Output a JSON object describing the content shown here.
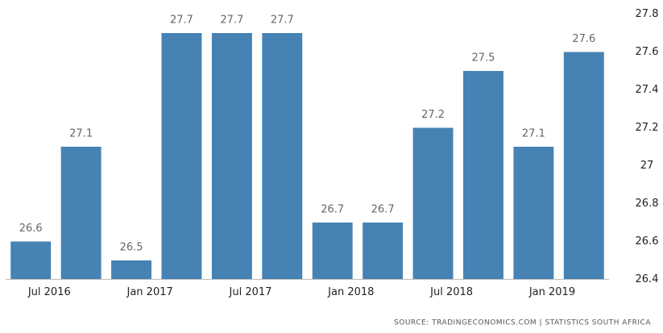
{
  "chart_data": {
    "type": "bar",
    "categories": [
      "Jul 2016",
      null,
      "Jan 2017",
      null,
      "Jul 2017",
      null,
      "Jan 2018",
      null,
      "Jul 2018",
      null,
      "Jan 2019",
      null
    ],
    "values": [
      26.6,
      27.1,
      26.5,
      27.7,
      27.7,
      27.7,
      26.7,
      26.7,
      27.2,
      27.5,
      27.1,
      27.6
    ],
    "color": "#4682b4",
    "ylim": [
      26.4,
      27.8
    ],
    "yticks": [
      26.4,
      26.6,
      26.8,
      27,
      27.2,
      27.4,
      27.6,
      27.8
    ],
    "y_axis_side": "right",
    "grid": false,
    "source": "SOURCE: TRADINGECONOMICS.COM | STATISTICS SOUTH AFRICA"
  }
}
